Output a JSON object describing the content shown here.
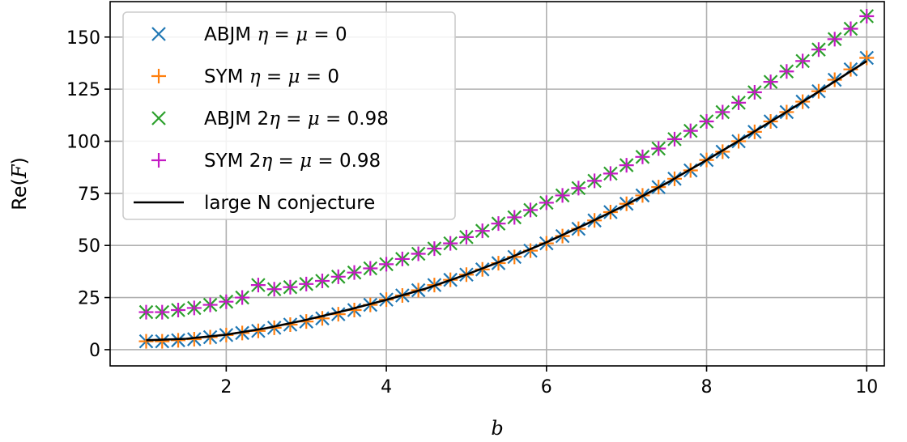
{
  "chart_data": {
    "type": "scatter",
    "xlabel": "b",
    "ylabel_prefix": "Re(",
    "ylabel_var": "F",
    "ylabel_suffix": ")",
    "xlim": [
      0.55,
      10.22
    ],
    "ylim": [
      -7.8,
      167
    ],
    "xticks": [
      2,
      4,
      6,
      8,
      10
    ],
    "yticks": [
      0,
      25,
      50,
      75,
      100,
      125,
      150
    ],
    "grid": true,
    "legend_position": "upper-left",
    "colors": {
      "blue": "#1f77b4",
      "orange": "#ff7f0e",
      "green": "#2ca02c",
      "magenta": "#c41ac4",
      "black": "#000000"
    },
    "series": [
      {
        "name": "ABJM η = μ = 0",
        "legend": {
          "pre": "ABJM ",
          "var1": "η",
          "mid": " = ",
          "var2": "μ",
          "post": " = 0"
        },
        "marker": "x",
        "color": "#1f77b4",
        "x": [
          1.0,
          1.2,
          1.4,
          1.6,
          1.8,
          2.0,
          2.2,
          2.4,
          2.6,
          2.8,
          3.0,
          3.2,
          3.4,
          3.6,
          3.8,
          4.0,
          4.2,
          4.4,
          4.6,
          4.8,
          5.0,
          5.2,
          5.4,
          5.6,
          5.8,
          6.0,
          6.2,
          6.4,
          6.6,
          6.8,
          7.0,
          7.2,
          7.4,
          7.6,
          7.8,
          8.0,
          8.2,
          8.4,
          8.6,
          8.8,
          9.0,
          9.2,
          9.4,
          9.6,
          9.8,
          10.0
        ],
        "y": [
          4,
          4,
          4.5,
          5,
          6,
          7,
          8,
          9,
          10.5,
          12,
          13.5,
          15,
          17,
          19,
          21.5,
          24,
          26,
          28.5,
          31,
          33.5,
          36,
          38.5,
          41.5,
          44.5,
          47.5,
          51,
          54.5,
          58,
          62,
          66,
          70,
          74,
          78,
          82,
          86,
          91,
          95,
          100,
          104.5,
          109.5,
          114,
          119,
          124,
          129.5,
          134.5,
          140
        ]
      },
      {
        "name": "SYM η = μ = 0",
        "legend": {
          "pre": "SYM ",
          "var1": "η",
          "mid": " = ",
          "var2": "μ",
          "post": " = 0"
        },
        "marker": "+",
        "color": "#ff7f0e",
        "x": [
          1.0,
          1.2,
          1.4,
          1.6,
          1.8,
          2.0,
          2.2,
          2.4,
          2.6,
          2.8,
          3.0,
          3.2,
          3.4,
          3.6,
          3.8,
          4.0,
          4.2,
          4.4,
          4.6,
          4.8,
          5.0,
          5.2,
          5.4,
          5.6,
          5.8,
          6.0,
          6.2,
          6.4,
          6.6,
          6.8,
          7.0,
          7.2,
          7.4,
          7.6,
          7.8,
          8.0,
          8.2,
          8.4,
          8.6,
          8.8,
          9.0,
          9.2,
          9.4,
          9.6,
          9.8,
          10.0
        ],
        "y": [
          4,
          4,
          4.5,
          5,
          6,
          7,
          8,
          9,
          10.5,
          12,
          13.5,
          15,
          17,
          19,
          21.5,
          24,
          26,
          28.5,
          31,
          33.5,
          36,
          38.5,
          41.5,
          44.5,
          47.5,
          51,
          54.5,
          58,
          62,
          66,
          70,
          74,
          78,
          82,
          86,
          91,
          95,
          100,
          104.5,
          109.5,
          114,
          119,
          124,
          129.5,
          134.5,
          140
        ]
      },
      {
        "name": "ABJM 2η = μ = 0.98",
        "legend": {
          "pre": "ABJM 2",
          "var1": "η",
          "mid": " = ",
          "var2": "μ",
          "post": " = 0.98"
        },
        "marker": "x",
        "color": "#2ca02c",
        "x": [
          1.0,
          1.2,
          1.4,
          1.6,
          1.8,
          2.0,
          2.2,
          2.4,
          2.6,
          2.8,
          3.0,
          3.2,
          3.4,
          3.6,
          3.8,
          4.0,
          4.2,
          4.4,
          4.6,
          4.8,
          5.0,
          5.2,
          5.4,
          5.6,
          5.8,
          6.0,
          6.2,
          6.4,
          6.6,
          6.8,
          7.0,
          7.2,
          7.4,
          7.6,
          7.8,
          8.0,
          8.2,
          8.4,
          8.6,
          8.8,
          9.0,
          9.2,
          9.4,
          9.6,
          9.8,
          10.0
        ],
        "y": [
          18,
          18,
          19,
          20,
          21.5,
          23,
          25,
          31,
          29,
          30,
          31.5,
          33,
          35,
          37,
          39,
          41,
          43.5,
          46,
          48.5,
          51,
          54,
          57,
          60.5,
          63.5,
          67,
          70.5,
          74,
          77.5,
          81,
          84.5,
          88.5,
          92.5,
          96.5,
          101,
          105,
          109.5,
          114,
          118.5,
          123.5,
          128.5,
          133.5,
          138.5,
          144,
          149,
          154,
          160
        ]
      },
      {
        "name": "SYM 2η = μ = 0.98",
        "legend": {
          "pre": "SYM 2",
          "var1": "η",
          "mid": " = ",
          "var2": "μ",
          "post": " = 0.98"
        },
        "marker": "+",
        "color": "#c41ac4",
        "x": [
          1.0,
          1.2,
          1.4,
          1.6,
          1.8,
          2.0,
          2.2,
          2.4,
          2.6,
          2.8,
          3.0,
          3.2,
          3.4,
          3.6,
          3.8,
          4.0,
          4.2,
          4.4,
          4.6,
          4.8,
          5.0,
          5.2,
          5.4,
          5.6,
          5.8,
          6.0,
          6.2,
          6.4,
          6.6,
          6.8,
          7.0,
          7.2,
          7.4,
          7.6,
          7.8,
          8.0,
          8.2,
          8.4,
          8.6,
          8.8,
          9.0,
          9.2,
          9.4,
          9.6,
          9.8,
          10.0
        ],
        "y": [
          18,
          18,
          19,
          20,
          21.5,
          23,
          25,
          31,
          29,
          30,
          31.5,
          33,
          35,
          37,
          39,
          41,
          43.5,
          46,
          48.5,
          51,
          54,
          57,
          60.5,
          63.5,
          67,
          70.5,
          74,
          77.5,
          81,
          84.5,
          88.5,
          92.5,
          96.5,
          101,
          105,
          109.5,
          114,
          118.5,
          123.5,
          128.5,
          133.5,
          138.5,
          144,
          149,
          154,
          160
        ]
      },
      {
        "name": "large N conjecture",
        "legend": {
          "plain": "large N conjecture"
        },
        "marker": "line",
        "color": "#000000",
        "x": [
          1.0,
          1.5,
          2.0,
          2.5,
          3.0,
          3.5,
          4.0,
          4.5,
          5.0,
          5.5,
          6.0,
          6.5,
          7.0,
          7.5,
          8.0,
          8.5,
          9.0,
          9.5,
          10.0
        ],
        "y": [
          4.5,
          5.2,
          7.2,
          10.3,
          14.3,
          18.9,
          23.9,
          29.4,
          36.0,
          43.4,
          51.5,
          60.3,
          69.6,
          79.9,
          91.0,
          102.4,
          114.1,
          126.2,
          138.5
        ]
      }
    ]
  }
}
